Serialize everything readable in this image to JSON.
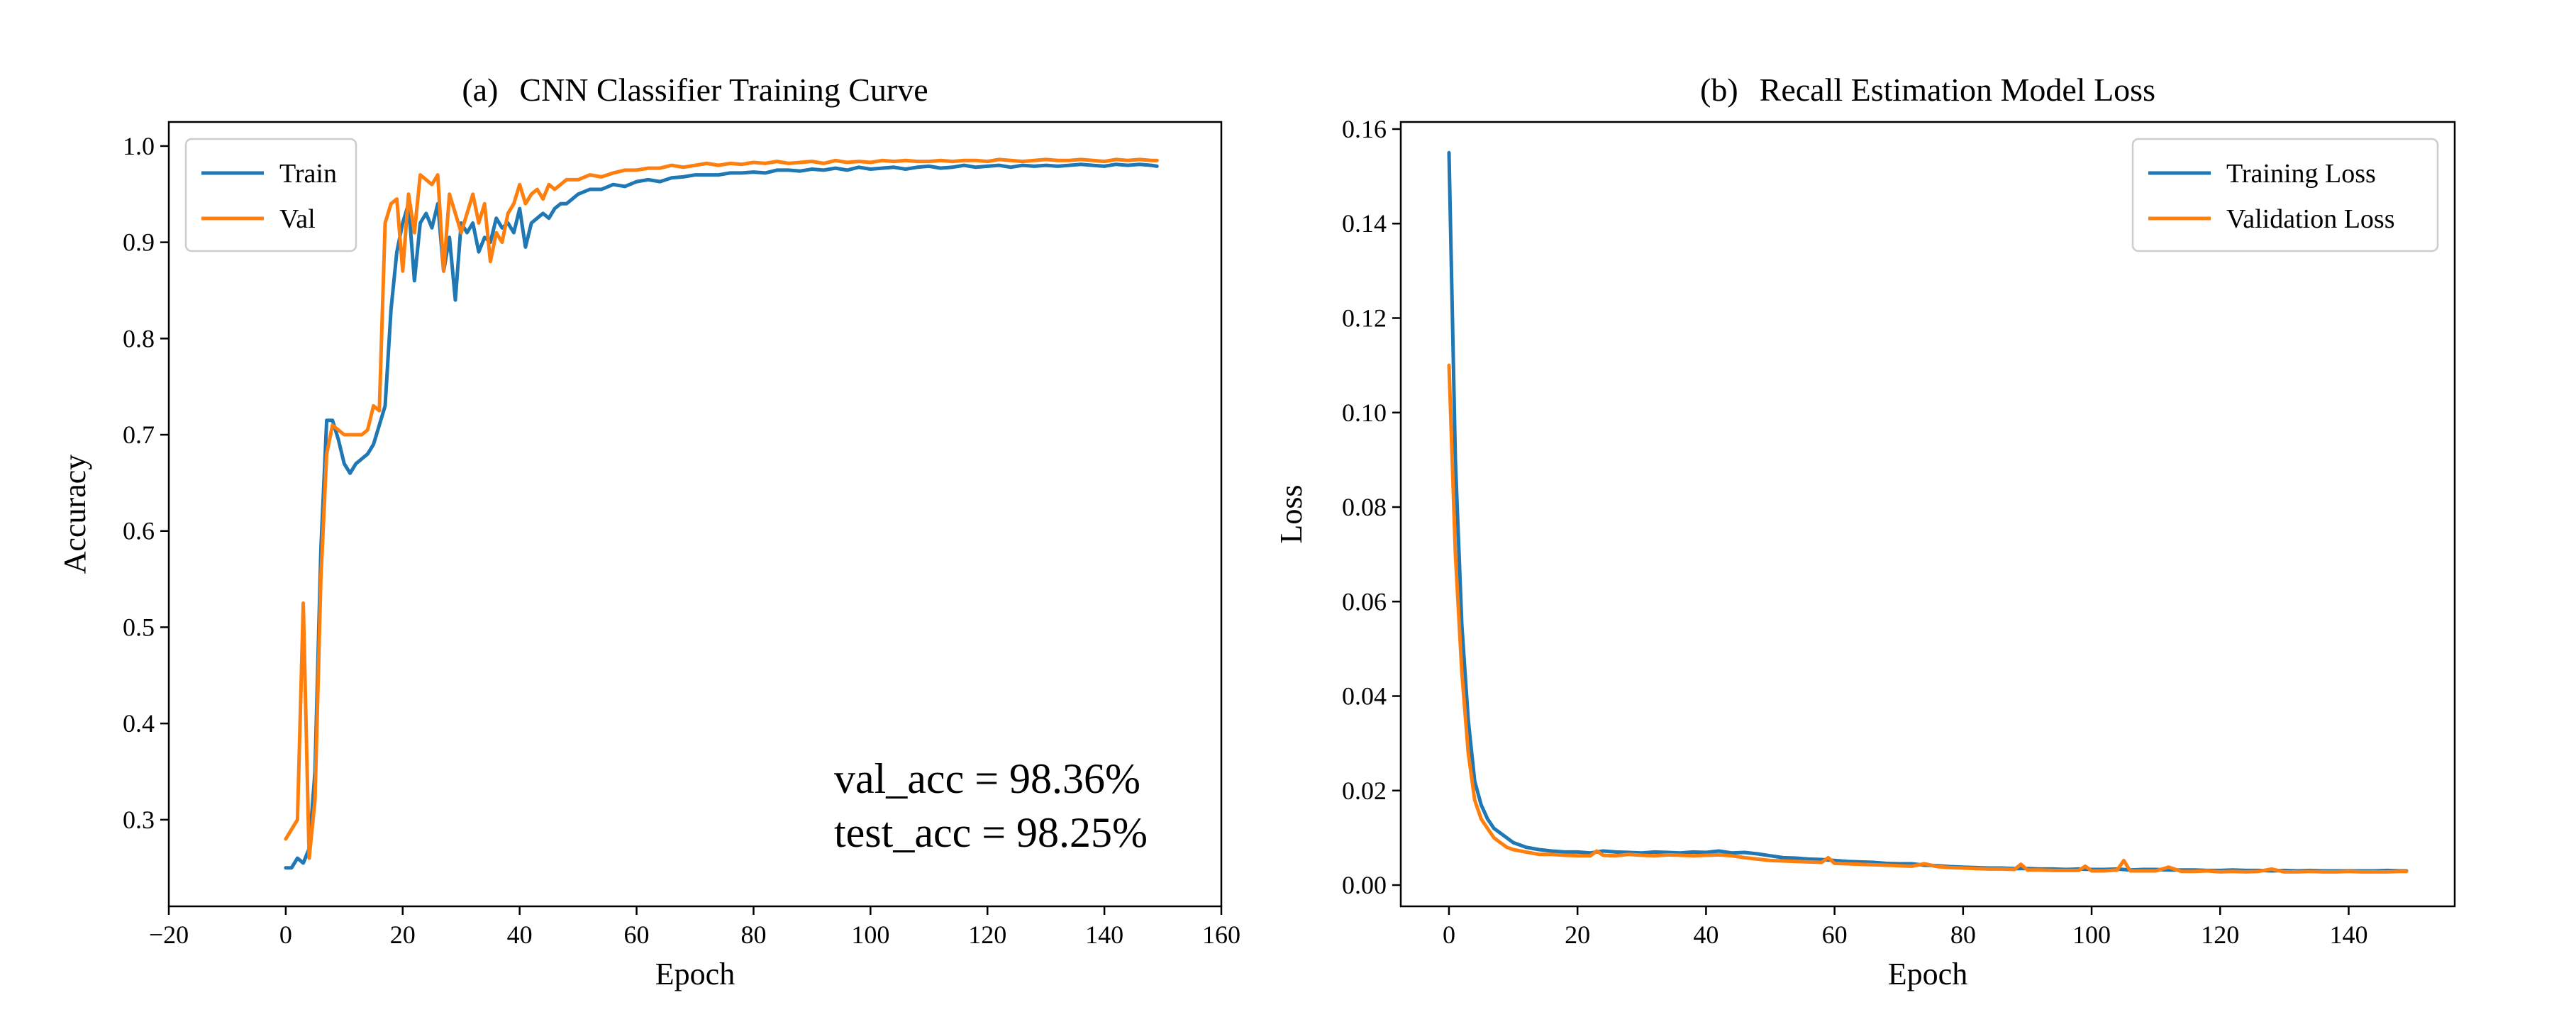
{
  "colors": {
    "series_1": "#1f77b4",
    "series_2": "#ff7f0e",
    "axes": "#000000",
    "legend_border": "#cccccc",
    "background": "#ffffff"
  },
  "chart_data": [
    {
      "id": "a",
      "type": "line",
      "title_prefix": "(a)",
      "title": "CNN Classifier Training Curve",
      "xlabel": "Epoch",
      "ylabel": "Accuracy",
      "xlim": [
        -20,
        160
      ],
      "ylim": [
        0.21,
        1.025
      ],
      "xticks": [
        -20,
        0,
        20,
        40,
        60,
        80,
        100,
        120,
        140,
        160
      ],
      "yticks": [
        0.3,
        0.4,
        0.5,
        0.6,
        0.7,
        0.8,
        0.9,
        1.0
      ],
      "xtick_labels": [
        "−20",
        "0",
        "20",
        "40",
        "60",
        "80",
        "100",
        "120",
        "140",
        "160"
      ],
      "ytick_labels": [
        "0.3",
        "0.4",
        "0.5",
        "0.6",
        "0.7",
        "0.8",
        "0.9",
        "1.0"
      ],
      "grid": false,
      "legend_position": "top-left",
      "annotations": [
        "val_acc = 98.36%",
        "test_acc = 98.25%"
      ],
      "series": [
        {
          "name": "Train",
          "color_key": "series_1",
          "x": [
            0,
            1,
            2,
            3,
            4,
            5,
            6,
            7,
            8,
            9,
            10,
            11,
            12,
            13,
            14,
            15,
            16,
            17,
            18,
            19,
            20,
            21,
            22,
            23,
            24,
            25,
            26,
            27,
            28,
            29,
            30,
            31,
            32,
            33,
            34,
            35,
            36,
            37,
            38,
            39,
            40,
            41,
            42,
            43,
            44,
            45,
            46,
            47,
            48,
            49,
            50,
            52,
            54,
            56,
            58,
            60,
            62,
            64,
            66,
            68,
            70,
            72,
            74,
            76,
            78,
            80,
            82,
            84,
            86,
            88,
            90,
            92,
            94,
            96,
            98,
            100,
            102,
            104,
            106,
            108,
            110,
            112,
            114,
            116,
            118,
            120,
            122,
            124,
            126,
            128,
            130,
            132,
            134,
            136,
            138,
            140,
            142,
            144,
            146,
            148,
            149
          ],
          "y": [
            0.25,
            0.25,
            0.26,
            0.255,
            0.27,
            0.35,
            0.58,
            0.715,
            0.715,
            0.695,
            0.67,
            0.66,
            0.67,
            0.675,
            0.68,
            0.69,
            0.71,
            0.73,
            0.83,
            0.89,
            0.92,
            0.94,
            0.86,
            0.92,
            0.93,
            0.915,
            0.94,
            0.87,
            0.905,
            0.84,
            0.92,
            0.91,
            0.92,
            0.89,
            0.905,
            0.9,
            0.925,
            0.915,
            0.92,
            0.91,
            0.935,
            0.895,
            0.92,
            0.925,
            0.93,
            0.925,
            0.935,
            0.94,
            0.94,
            0.945,
            0.95,
            0.955,
            0.955,
            0.96,
            0.958,
            0.963,
            0.965,
            0.963,
            0.967,
            0.968,
            0.97,
            0.97,
            0.97,
            0.972,
            0.972,
            0.973,
            0.972,
            0.975,
            0.975,
            0.974,
            0.976,
            0.975,
            0.977,
            0.975,
            0.978,
            0.976,
            0.977,
            0.978,
            0.976,
            0.978,
            0.979,
            0.977,
            0.978,
            0.98,
            0.978,
            0.979,
            0.98,
            0.978,
            0.98,
            0.979,
            0.98,
            0.979,
            0.98,
            0.981,
            0.98,
            0.979,
            0.981,
            0.98,
            0.981,
            0.98,
            0.979
          ]
        },
        {
          "name": "Val",
          "color_key": "series_2",
          "x": [
            0,
            1,
            2,
            3,
            4,
            5,
            6,
            7,
            8,
            9,
            10,
            11,
            12,
            13,
            14,
            15,
            16,
            17,
            18,
            19,
            20,
            21,
            22,
            23,
            24,
            25,
            26,
            27,
            28,
            29,
            30,
            31,
            32,
            33,
            34,
            35,
            36,
            37,
            38,
            39,
            40,
            41,
            42,
            43,
            44,
            45,
            46,
            47,
            48,
            49,
            50,
            52,
            54,
            56,
            58,
            60,
            62,
            64,
            66,
            68,
            70,
            72,
            74,
            76,
            78,
            80,
            82,
            84,
            86,
            88,
            90,
            92,
            94,
            96,
            98,
            100,
            102,
            104,
            106,
            108,
            110,
            112,
            114,
            116,
            118,
            120,
            122,
            124,
            126,
            128,
            130,
            132,
            134,
            136,
            138,
            140,
            142,
            144,
            146,
            148,
            149
          ],
          "y": [
            0.28,
            0.29,
            0.3,
            0.525,
            0.26,
            0.32,
            0.55,
            0.68,
            0.71,
            0.705,
            0.7,
            0.7,
            0.7,
            0.7,
            0.705,
            0.73,
            0.725,
            0.92,
            0.94,
            0.945,
            0.87,
            0.95,
            0.91,
            0.97,
            0.965,
            0.96,
            0.97,
            0.87,
            0.95,
            0.93,
            0.91,
            0.93,
            0.95,
            0.92,
            0.94,
            0.88,
            0.91,
            0.9,
            0.93,
            0.94,
            0.96,
            0.94,
            0.95,
            0.955,
            0.945,
            0.96,
            0.955,
            0.96,
            0.965,
            0.965,
            0.965,
            0.97,
            0.968,
            0.972,
            0.975,
            0.975,
            0.977,
            0.977,
            0.98,
            0.978,
            0.98,
            0.982,
            0.98,
            0.982,
            0.981,
            0.983,
            0.982,
            0.984,
            0.982,
            0.983,
            0.984,
            0.982,
            0.985,
            0.983,
            0.984,
            0.983,
            0.985,
            0.984,
            0.985,
            0.984,
            0.984,
            0.985,
            0.984,
            0.985,
            0.985,
            0.984,
            0.986,
            0.985,
            0.984,
            0.985,
            0.986,
            0.985,
            0.985,
            0.986,
            0.985,
            0.984,
            0.986,
            0.985,
            0.986,
            0.985,
            0.985
          ]
        }
      ]
    },
    {
      "id": "b",
      "type": "line",
      "title_prefix": "(b)",
      "title": "Recall Estimation Model Loss",
      "xlabel": "Epoch",
      "ylabel": "Loss",
      "xlim": [
        -7.5,
        156.5
      ],
      "ylim": [
        -0.0045,
        0.1615
      ],
      "xticks": [
        0,
        20,
        40,
        60,
        80,
        100,
        120,
        140
      ],
      "yticks": [
        0,
        0.02,
        0.04,
        0.06,
        0.08,
        0.1,
        0.12,
        0.14,
        0.16
      ],
      "xtick_labels": [
        "0",
        "20",
        "40",
        "60",
        "80",
        "100",
        "120",
        "140"
      ],
      "ytick_labels": [
        "0.00",
        "0.02",
        "0.04",
        "0.06",
        "0.08",
        "0.10",
        "0.12",
        "0.14",
        "0.16"
      ],
      "grid": false,
      "legend_position": "top-right",
      "series": [
        {
          "name": "Training Loss",
          "color_key": "series_1",
          "x": [
            0,
            1,
            2,
            3,
            4,
            5,
            6,
            7,
            8,
            9,
            10,
            12,
            14,
            16,
            18,
            20,
            22,
            24,
            26,
            28,
            30,
            32,
            34,
            36,
            38,
            40,
            42,
            44,
            46,
            48,
            50,
            52,
            54,
            56,
            58,
            60,
            62,
            64,
            66,
            68,
            70,
            72,
            74,
            76,
            78,
            80,
            82,
            84,
            86,
            88,
            90,
            92,
            94,
            96,
            98,
            100,
            102,
            104,
            106,
            108,
            110,
            112,
            114,
            116,
            118,
            120,
            122,
            124,
            126,
            128,
            130,
            132,
            134,
            136,
            138,
            140,
            142,
            144,
            146,
            148,
            149
          ],
          "y": [
            0.155,
            0.09,
            0.055,
            0.035,
            0.022,
            0.017,
            0.014,
            0.012,
            0.011,
            0.01,
            0.009,
            0.008,
            0.0075,
            0.0072,
            0.007,
            0.007,
            0.0068,
            0.0072,
            0.007,
            0.0069,
            0.0068,
            0.007,
            0.0069,
            0.0068,
            0.007,
            0.0069,
            0.0072,
            0.0068,
            0.0069,
            0.0066,
            0.0062,
            0.0058,
            0.0057,
            0.0055,
            0.0054,
            0.0052,
            0.005,
            0.0049,
            0.0048,
            0.0046,
            0.0045,
            0.0045,
            0.0042,
            0.0041,
            0.0039,
            0.0038,
            0.0037,
            0.0036,
            0.0036,
            0.0035,
            0.0035,
            0.0034,
            0.0034,
            0.0033,
            0.0034,
            0.0033,
            0.0033,
            0.0034,
            0.0032,
            0.0033,
            0.0033,
            0.0032,
            0.0032,
            0.0032,
            0.0031,
            0.0031,
            0.0032,
            0.0031,
            0.0031,
            0.003,
            0.0031,
            0.003,
            0.0031,
            0.003,
            0.003,
            0.003,
            0.003,
            0.003,
            0.0031,
            0.003,
            0.003
          ]
        },
        {
          "name": "Validation Loss",
          "color_key": "series_2",
          "x": [
            0,
            1,
            2,
            3,
            4,
            5,
            6,
            7,
            8,
            9,
            10,
            12,
            14,
            16,
            18,
            20,
            22,
            23,
            24,
            26,
            28,
            30,
            32,
            34,
            36,
            38,
            40,
            42,
            44,
            46,
            48,
            50,
            52,
            54,
            56,
            58,
            59,
            60,
            62,
            64,
            66,
            68,
            70,
            72,
            74,
            76,
            78,
            80,
            82,
            84,
            86,
            88,
            89,
            90,
            92,
            94,
            96,
            98,
            99,
            100,
            102,
            104,
            105,
            106,
            108,
            110,
            112,
            114,
            116,
            118,
            120,
            122,
            124,
            126,
            128,
            130,
            132,
            134,
            136,
            138,
            140,
            142,
            144,
            146,
            148,
            149
          ],
          "y": [
            0.11,
            0.07,
            0.045,
            0.028,
            0.018,
            0.014,
            0.012,
            0.01,
            0.009,
            0.008,
            0.0075,
            0.007,
            0.0065,
            0.0065,
            0.0063,
            0.0062,
            0.0062,
            0.0072,
            0.0063,
            0.0062,
            0.0065,
            0.0063,
            0.0062,
            0.0064,
            0.0063,
            0.0062,
            0.0063,
            0.0064,
            0.0062,
            0.0058,
            0.0055,
            0.0052,
            0.0051,
            0.005,
            0.0049,
            0.0048,
            0.0058,
            0.0046,
            0.0045,
            0.0044,
            0.0043,
            0.0042,
            0.0041,
            0.004,
            0.0045,
            0.0039,
            0.0037,
            0.0036,
            0.0035,
            0.0034,
            0.0034,
            0.0033,
            0.0044,
            0.0032,
            0.0032,
            0.0031,
            0.0031,
            0.0031,
            0.004,
            0.003,
            0.003,
            0.0032,
            0.0052,
            0.003,
            0.003,
            0.003,
            0.0038,
            0.0029,
            0.0029,
            0.003,
            0.0028,
            0.0029,
            0.0028,
            0.0029,
            0.0034,
            0.0028,
            0.0028,
            0.0029,
            0.0028,
            0.0028,
            0.0029,
            0.0028,
            0.0028,
            0.0028,
            0.0029,
            0.0029
          ]
        }
      ]
    }
  ]
}
